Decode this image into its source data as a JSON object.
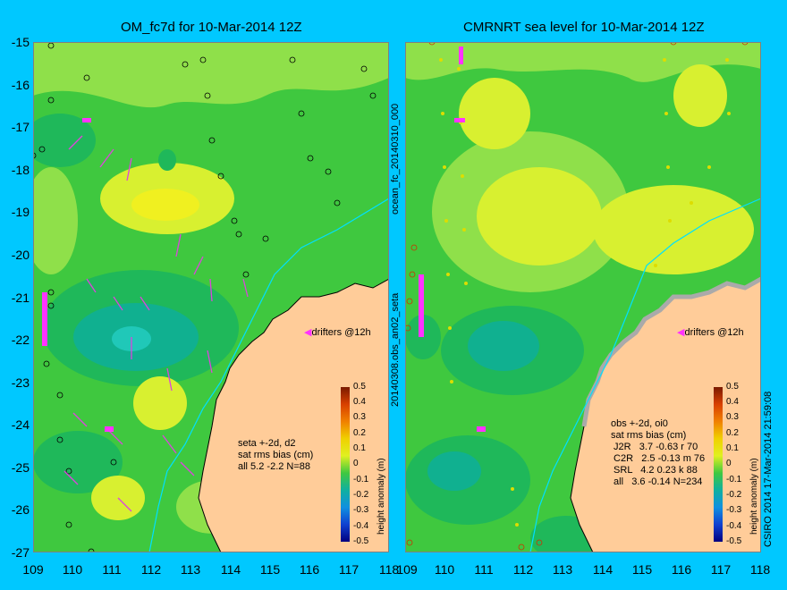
{
  "colors": {
    "background": "#00c8ff",
    "land": "#ffcc99",
    "ocean_base": "#3fc83f",
    "coast": "#000000",
    "drifter": "#ff33ff"
  },
  "left": {
    "title": "OM_fc7d for 10-Mar-2014 12Z",
    "stats": "seta +-2d, d2\nsat rms bias (cm)\nall 5.2 -2.2 N=88",
    "drifter_label": "drifters @12h"
  },
  "right": {
    "title": "CMRNRT sea level  for 10-Mar-2014 12Z",
    "stats": "obs +-2d, oi0\nsat rms bias (cm)\n J2R   3.7 -0.63 r 70\n C2R   2.5 -0.13 m 76\n SRL   4.2 0.23 k 88\n all   3.6 -0.14 N=234",
    "drifter_label": "drifters @12h"
  },
  "side_labels": {
    "top": "ocean_fc_20140310_000",
    "bottom": "20140308.obs_an02_seta",
    "right": "CSIRO 2014  17-Mar-2014 21:59:08"
  },
  "axes": {
    "x_ticks": [
      "109",
      "110",
      "111",
      "112",
      "113",
      "114",
      "115",
      "116",
      "117",
      "118"
    ],
    "y_ticks": [
      "-15",
      "-16",
      "-17",
      "-18",
      "-19",
      "-20",
      "-21",
      "-22",
      "-23",
      "-24",
      "-25",
      "-26",
      "-27"
    ]
  },
  "colorbar": {
    "ticks": [
      "0.5",
      "0.4",
      "0.3",
      "0.2",
      "0.1",
      "0",
      "-0.1",
      "-0.2",
      "-0.3",
      "-0.4",
      "-0.5"
    ],
    "label": "height anomaly (m)"
  }
}
